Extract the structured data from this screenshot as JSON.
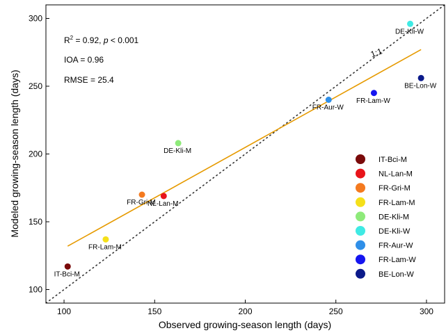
{
  "chart_data": {
    "type": "scatter",
    "xlabel": "Observed growing-season length (days)",
    "ylabel": "Modeled growing-season length (days)",
    "xlim": [
      90,
      310
    ],
    "ylim": [
      90,
      310
    ],
    "xticks": [
      100,
      150,
      200,
      250,
      300
    ],
    "yticks": [
      100,
      150,
      200,
      250,
      300
    ],
    "grid": false,
    "legend_position": "right",
    "stats": {
      "r2_prefix": "R",
      "r2_sup": "2",
      "r2_value": " = 0.92, ",
      "p_label": "p",
      "p_value": " < 0.001",
      "ioa": "IOA = 0.96",
      "rmse": "RMSE = 25.4"
    },
    "one_to_one_label": "1:1",
    "one_to_one_color": "#333333",
    "regression_line": {
      "x": [
        102,
        297
      ],
      "y": [
        132,
        277
      ],
      "color": "#E69A00"
    },
    "points": [
      {
        "label": "IT-Bci-M",
        "x": 102,
        "y": 117,
        "color": "#7A0A0A"
      },
      {
        "label": "NL-Lan-M",
        "x": 155,
        "y": 169,
        "color": "#E8141A"
      },
      {
        "label": "FR-Gri-M",
        "x": 143,
        "y": 170,
        "color": "#F47A1F"
      },
      {
        "label": "FR-Lam-M",
        "x": 123,
        "y": 137,
        "color": "#F5E01A"
      },
      {
        "label": "DE-Kli-M",
        "x": 163,
        "y": 208,
        "color": "#8EEA7A"
      },
      {
        "label": "DE-Kli-W",
        "x": 291,
        "y": 296,
        "color": "#3FEAE4"
      },
      {
        "label": "FR-Aur-W",
        "x": 246,
        "y": 240,
        "color": "#2F8FE8"
      },
      {
        "label": "FR-Lam-W",
        "x": 271,
        "y": 245,
        "color": "#1515F0"
      },
      {
        "label": "BE-Lon-W",
        "x": 297,
        "y": 256,
        "color": "#0B1A8A"
      }
    ]
  }
}
